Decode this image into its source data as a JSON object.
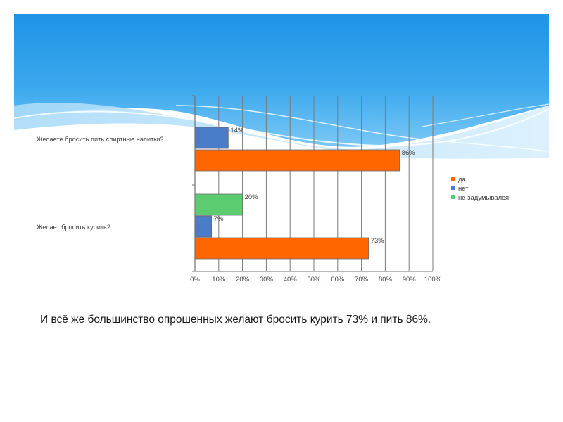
{
  "slide": {
    "background": "#ffffff",
    "banner_colors": [
      "#1f93e6",
      "#52b8f2",
      "#9fd6f8",
      "#d8eefc"
    ],
    "caption": "И всё же большинство опрошенных желают бросить курить 73% и пить 86%."
  },
  "chart_data": {
    "type": "bar",
    "orientation": "horizontal",
    "title": "",
    "xlabel": "",
    "ylabel": "",
    "xlim": [
      0,
      100
    ],
    "x_ticks": [
      "0%",
      "10%",
      "20%",
      "30%",
      "40%",
      "50%",
      "60%",
      "70%",
      "80%",
      "90%",
      "100%"
    ],
    "grid": true,
    "legend_position": "right",
    "categories": [
      "Желаете бросить пить спиртные напитки?",
      "Желает бросить курить?"
    ],
    "series": [
      {
        "name": "да",
        "color": "#ff6600",
        "values": [
          86,
          73
        ],
        "labels": [
          "86%",
          "73%"
        ]
      },
      {
        "name": "нет",
        "color": "#4a7cc9",
        "values": [
          14,
          7
        ],
        "labels": [
          "14%",
          "7%"
        ]
      },
      {
        "name": "не задумывался",
        "color": "#5ccc70",
        "values": [
          null,
          20
        ],
        "labels": [
          "",
          "20%"
        ]
      }
    ]
  }
}
